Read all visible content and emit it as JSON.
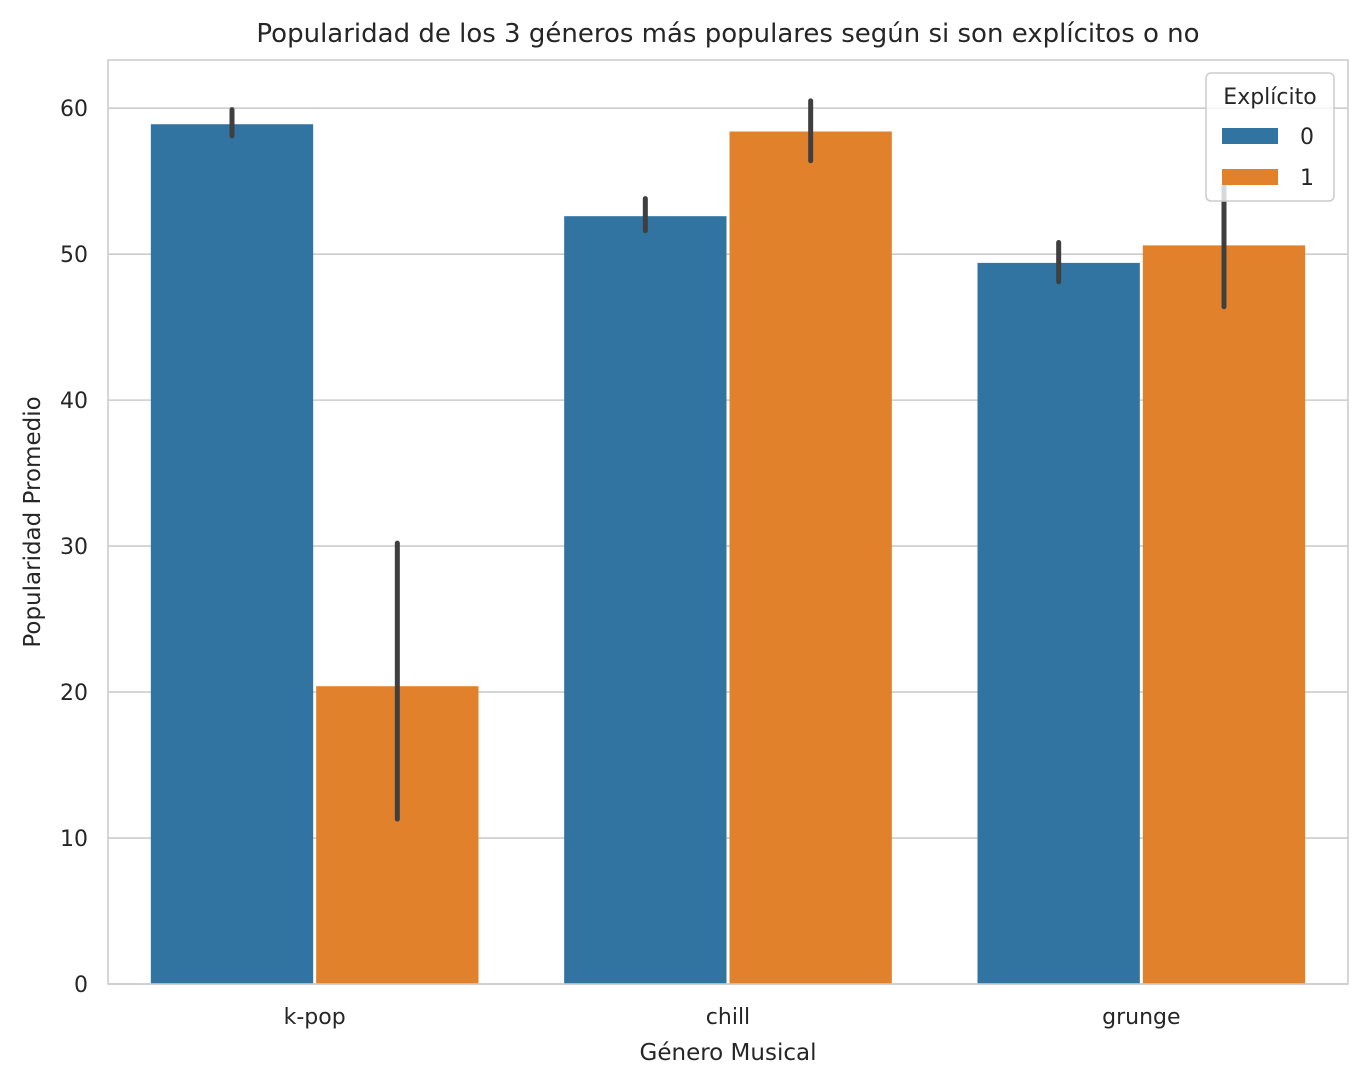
{
  "chart_data": {
    "type": "bar",
    "title": "Popularidad de los 3 géneros más populares según si son explícitos o no",
    "xlabel": "Género Musical",
    "ylabel": "Popularidad Promedio",
    "categories": [
      "k-pop",
      "chill",
      "grunge"
    ],
    "ylim": [
      0,
      63.3
    ],
    "yticks": [
      0,
      10,
      20,
      30,
      40,
      50,
      60
    ],
    "grid": true,
    "legend": {
      "title": "Explícito",
      "placement": "top-right"
    },
    "series": [
      {
        "name": "0",
        "color": "#3274a1",
        "values": [
          58.9,
          52.6,
          49.4
        ],
        "ci_low": [
          58.1,
          51.6,
          48.1
        ],
        "ci_high": [
          59.9,
          53.8,
          50.8
        ]
      },
      {
        "name": "1",
        "color": "#e1812c",
        "values": [
          20.4,
          58.4,
          50.6
        ],
        "ci_low": [
          11.3,
          56.4,
          46.4
        ],
        "ci_high": [
          30.2,
          60.5,
          54.6
        ]
      }
    ],
    "errorbar_color": "#3f3f3f"
  }
}
